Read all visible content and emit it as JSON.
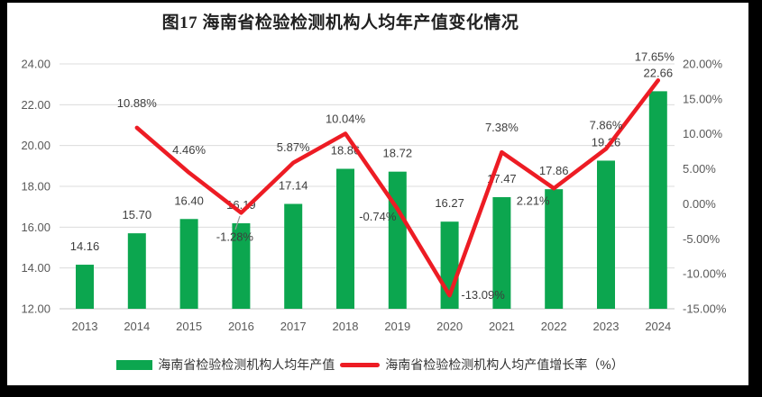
{
  "page": {
    "title": "图17  海南省检验检测机构人均年产值变化情况"
  },
  "chart_data": {
    "type": "combo-bar-line",
    "title": "图17  海南省检验检测机构人均年产值变化情况",
    "categories": [
      "2013",
      "2014",
      "2015",
      "2016",
      "2017",
      "2018",
      "2019",
      "2020",
      "2021",
      "2022",
      "2023",
      "2024"
    ],
    "series": [
      {
        "name": "海南省检验检测机构人均年产值",
        "chart": "bar",
        "axis": "left",
        "color": "#0ca64f",
        "values": [
          14.16,
          15.7,
          16.4,
          16.19,
          17.14,
          18.86,
          18.72,
          16.27,
          17.47,
          17.86,
          19.26,
          22.66
        ],
        "labels": [
          "14.16",
          "15.70",
          "16.40",
          "16.19",
          "17.14",
          "18.86",
          "18.72",
          "16.27",
          "17.47",
          "17.86",
          "19.26",
          "22.66"
        ]
      },
      {
        "name": "海南省检验检测机构人均产值增长率（%）",
        "chart": "line",
        "axis": "right",
        "color": "#ed1c24",
        "values": [
          null,
          10.88,
          4.46,
          -1.28,
          5.87,
          10.04,
          -0.74,
          -13.09,
          7.38,
          2.21,
          7.86,
          17.65
        ],
        "labels": [
          null,
          "10.88%",
          "4.46%",
          "-1.28%",
          "5.87%",
          "10.04%",
          "-0.74%",
          "-13.09%",
          "7.38%",
          "2.21%",
          "7.86%",
          "17.65%"
        ]
      }
    ],
    "left_axis": {
      "min": 12,
      "max": 24,
      "step": 2,
      "ticks": [
        "24.00",
        "22.00",
        "20.00",
        "18.00",
        "16.00",
        "14.00",
        "12.00"
      ]
    },
    "right_axis": {
      "min": -15,
      "max": 20,
      "step": 5,
      "ticks": [
        "20.00%",
        "15.00%",
        "10.00%",
        "5.00%",
        "0.00%",
        "-5.00%",
        "-10.00%",
        "-15.00%"
      ]
    },
    "grid": true,
    "legend_position": "bottom"
  },
  "colors": {
    "bar": "#0ca64f",
    "line": "#ed1c24",
    "gridline": "#dcdcdc",
    "baseline": "#c3c3c3",
    "axis_text": "#595959",
    "data_label_text": "#3d3d3d",
    "leader_line": "#9b9b9b"
  }
}
